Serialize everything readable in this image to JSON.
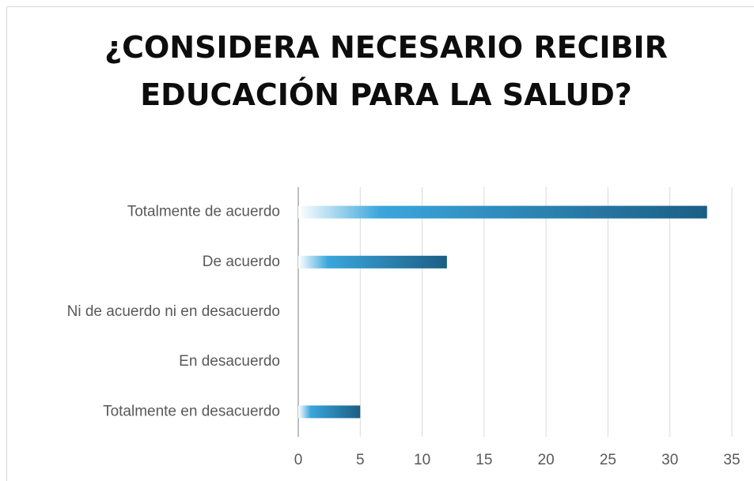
{
  "chart_data": {
    "type": "bar",
    "orientation": "horizontal",
    "title": "¿CONSIDERA NECESARIO RECIBIR EDUCACIÓN PARA LA SALUD?",
    "categories": [
      "Totalmente de acuerdo",
      "De acuerdo",
      "Ni de acuerdo ni en desacuerdo",
      "En desacuerdo",
      "Totalmente en desacuerdo"
    ],
    "values": [
      33,
      12,
      0,
      0,
      5
    ],
    "color": "#1b5e84",
    "xlim": [
      0,
      35
    ],
    "xticks": [
      0,
      5,
      10,
      15,
      20,
      25,
      30,
      35
    ],
    "grid": true
  }
}
